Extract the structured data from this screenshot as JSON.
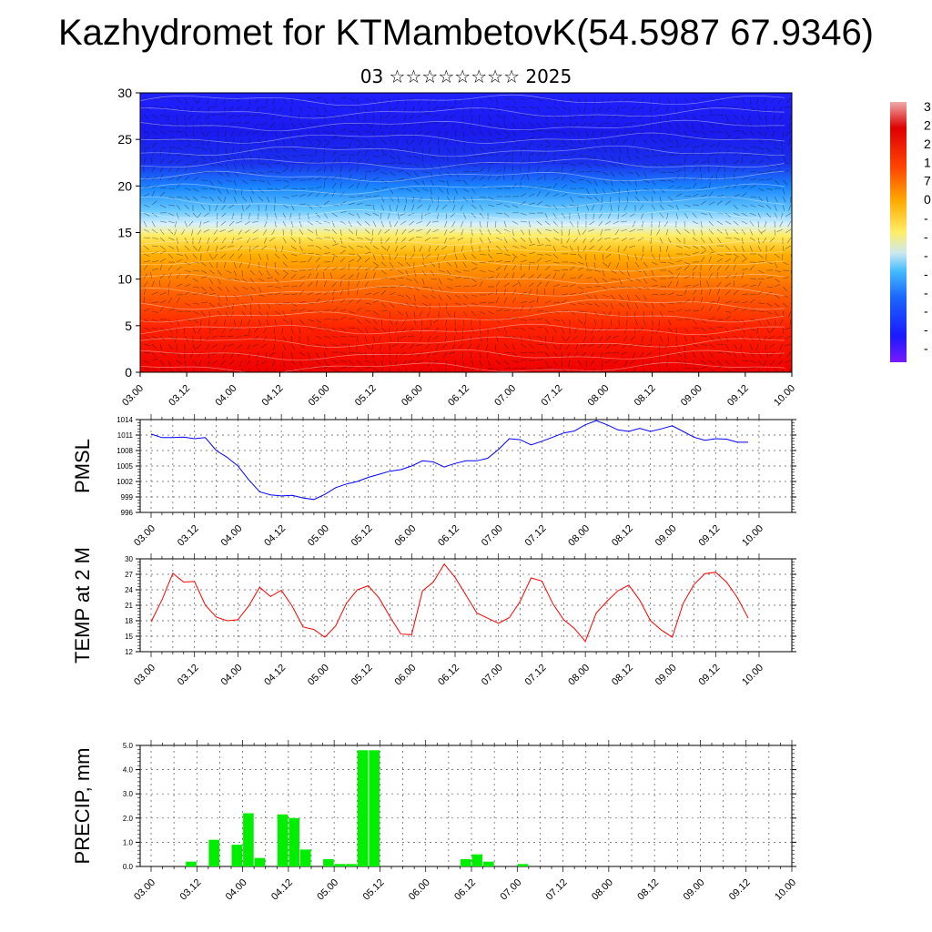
{
  "title": "Kazhydromet for KTMambetovK(54.5987 67.9346)",
  "subtitle": "03 ☆☆☆☆☆☆☆☆ 2025",
  "colors": {
    "pmsl_line": "#0000ff",
    "temp_line": "#ff0000",
    "precip_bar": "#00ee00",
    "contour_scale": [
      "#ff0000",
      "#ff6600",
      "#ffcc00",
      "#ffff99",
      "#66ccff",
      "#0066ff",
      "#0000cc",
      "#1a00ff"
    ]
  },
  "chart_data": [
    {
      "name": "cross-section",
      "type": "heatmap",
      "x_tick_labels": [
        "03.00",
        "03.12",
        "04.00",
        "04.12",
        "05.00",
        "05.12",
        "06.00",
        "06.12",
        "07.00",
        "07.12",
        "08.00",
        "08.12",
        "09.00",
        "09.12",
        "10.00"
      ],
      "y_tick_labels": [
        "0",
        "5",
        "10",
        "15",
        "20",
        "25",
        "30"
      ],
      "ylim": [
        0,
        30
      ],
      "colorbar_labels": [
        "3",
        "2",
        "2",
        "1",
        "7",
        "0",
        "-",
        "-",
        "-",
        "-",
        "-",
        "-",
        "-",
        "-"
      ]
    },
    {
      "name": "pmsl",
      "type": "line",
      "ylabel": "PMSL",
      "ylim": [
        996,
        1014
      ],
      "y_tick_labels": [
        "996",
        "999",
        "1002",
        "1005",
        "1008",
        "1011",
        "1014"
      ],
      "x_tick_labels": [
        "03.00",
        "03.12",
        "04.00",
        "04.12",
        "05.00",
        "05.12",
        "06.00",
        "06.12",
        "07.00",
        "07.12",
        "08.00",
        "08.12",
        "09.00",
        "09.12",
        "10.00"
      ],
      "x_range": [
        0,
        56
      ],
      "values": [
        1011.2,
        1010.5,
        1010.5,
        1010.6,
        1010.3,
        1010.5,
        1008.0,
        1006.7,
        1005.0,
        1002.3,
        1000.0,
        999.4,
        999.2,
        999.3,
        998.8,
        998.5,
        999.5,
        1000.8,
        1001.5,
        1002.0,
        1002.8,
        1003.4,
        1004.0,
        1004.3,
        1005.0,
        1006.0,
        1005.8,
        1004.8,
        1005.5,
        1006.0,
        1006.0,
        1006.5,
        1008.2,
        1010.3,
        1010.1,
        1009.1,
        1009.8,
        1010.6,
        1011.4,
        1011.8,
        1013.0,
        1013.8,
        1013.0,
        1012.0,
        1011.7,
        1012.3,
        1011.7,
        1012.2,
        1012.8,
        1011.7,
        1010.6,
        1010.0,
        1010.3,
        1010.2,
        1009.6,
        1009.6
      ]
    },
    {
      "name": "temp",
      "type": "line",
      "ylabel": "TEMP at 2 M",
      "ylim": [
        12,
        30
      ],
      "y_tick_labels": [
        "12",
        "15",
        "18",
        "21",
        "24",
        "27",
        "30"
      ],
      "x_tick_labels": [
        "03.00",
        "03.12",
        "04.00",
        "04.12",
        "05.00",
        "05.12",
        "06.00",
        "06.12",
        "07.00",
        "07.12",
        "08.00",
        "08.12",
        "09.00",
        "09.12",
        "10.00"
      ],
      "x_range": [
        0,
        56
      ],
      "values": [
        17.8,
        22.0,
        27.2,
        25.5,
        25.6,
        21.0,
        18.7,
        18.0,
        18.2,
        20.9,
        24.5,
        22.7,
        23.9,
        20.8,
        16.8,
        16.3,
        14.8,
        17.0,
        21.4,
        24.0,
        24.8,
        22.4,
        18.8,
        15.4,
        15.3,
        23.8,
        25.5,
        29.0,
        26.4,
        23.0,
        19.5,
        18.5,
        17.5,
        18.6,
        21.8,
        26.3,
        25.7,
        21.3,
        18.2,
        16.5,
        14.0,
        19.5,
        21.8,
        23.8,
        24.9,
        22.0,
        18.0,
        16.2,
        14.8,
        21.3,
        25.0,
        27.1,
        27.4,
        25.5,
        22.5,
        18.5
      ]
    },
    {
      "name": "precip",
      "type": "bar",
      "ylabel": "PRECIP, mm",
      "ylim": [
        0,
        5
      ],
      "y_tick_labels": [
        "0.0",
        "1.0",
        "2.0",
        "3.0",
        "4.0",
        "5.0"
      ],
      "x_tick_labels": [
        "03.00",
        "03.12",
        "04.00",
        "04.12",
        "05.00",
        "05.12",
        "06.00",
        "06.12",
        "07.00",
        "07.12",
        "08.00",
        "08.12",
        "09.00",
        "09.12",
        "10.00"
      ],
      "x_range": [
        0,
        56
      ],
      "bar_indices": [
        3,
        5,
        7,
        8,
        9,
        11,
        12,
        13,
        15,
        16,
        17,
        18,
        19,
        27,
        28,
        29,
        32
      ],
      "values": [
        0.2,
        1.1,
        0.9,
        2.2,
        0.35,
        2.15,
        2.0,
        0.7,
        0.3,
        0.1,
        0.1,
        4.8,
        4.8,
        0.3,
        0.5,
        0.2,
        0.1
      ]
    }
  ]
}
